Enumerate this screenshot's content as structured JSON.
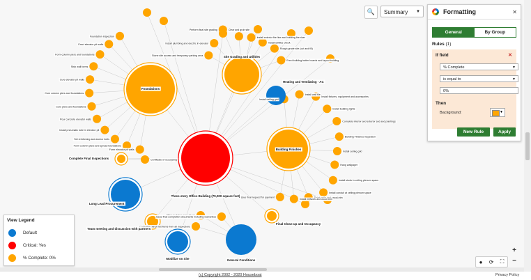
{
  "colors": {
    "default": "#0B79D0",
    "critical": "#FF0000",
    "complete": "#FFA500",
    "brand_green": "#2E7D32"
  },
  "toolbar": {
    "search_icon": "search-icon",
    "view_selected": "Summary"
  },
  "formatting": {
    "title": "Formatting",
    "close_icon": "close-icon",
    "tabs": [
      "General",
      "By Group"
    ],
    "active_tab": "General",
    "rules_label": "Rules",
    "rules_count": "(1)",
    "rule": {
      "if_label": "If field",
      "field": "% Complete",
      "operator": "is equal to",
      "value": "0%",
      "then_label": "Then",
      "background_label": "Background:",
      "background_color": "#FFA500"
    },
    "new_rule_label": "New Rule",
    "apply_label": "Apply"
  },
  "legend": {
    "title": "View Legend",
    "items": [
      {
        "label": "Default",
        "color": "#0B79D0"
      },
      {
        "label": "Critical: Yes",
        "color": "#FF0000"
      },
      {
        "label": "% Complete: 0%",
        "color": "#FFA500"
      }
    ]
  },
  "graph": {
    "center": {
      "label": "Three-story Office Building (79,000 square feet)",
      "kind": "critical"
    },
    "hubs": [
      {
        "id": "foundations",
        "label": "Foundations",
        "kind": "complete"
      },
      {
        "id": "site",
        "label": "Site Grading and Utilities",
        "kind": "complete"
      },
      {
        "id": "finishes",
        "label": "Building Finishes",
        "kind": "complete"
      },
      {
        "id": "hvac",
        "label": "Heating and Ventilating - AC",
        "kind": "default"
      },
      {
        "id": "procurement",
        "label": "Long Lead Procurement",
        "kind": "default"
      },
      {
        "id": "mobilize",
        "label": "Mobilize on Site",
        "kind": "default"
      },
      {
        "id": "general",
        "label": "General Conditions",
        "kind": "default"
      },
      {
        "id": "cleanup",
        "label": "Final Clean-up and Occupancy",
        "kind": "complete"
      },
      {
        "id": "inspections",
        "label": "Complete Final Inspections",
        "kind": "complete"
      },
      {
        "id": "meeting",
        "label": "Team meeting and discussion with partners",
        "kind": "complete"
      }
    ],
    "leaves": {
      "foundations": [
        "Foundation inspection",
        "Erect elevator pit walls",
        "Form column piers and foundations",
        "Strip wall forms",
        "Cure elevator pit walls",
        "Cure column piers and foundations",
        "Cure piers and foundations",
        "Pour concrete elevator walls",
        "Install pneumatic tube in elevator pit",
        "Set reinforcing and anchor bolts",
        "Form column piers and spread foundations",
        "Form elevator pit walls"
      ],
      "site": [
        "Stone site access and temporary parking area",
        "Install plumbing and electric in elevator",
        "Perform final site grading",
        "Clear and grub site",
        "Install exterior fire line and building fire riser",
        "Install utilities check",
        "Rough grade site (cut and fill)",
        "Erect building batter boards and layout building"
      ],
      "finishes": [
        "Install ceiling grid",
        "Install wall tile",
        "Install fixtures, equipment and accessories",
        "Install building lights",
        "Complete interior and exterior sod and plantings",
        "Building Finishes inspection",
        "Install ceiling grid",
        "Hang wallpaper",
        "Install studs in ceiling plenum space",
        "Install conduit at ceiling plenum space",
        "Paint walls and wood-trim",
        "Install millwork and wood trim",
        "Issue final request for payment"
      ],
      "general": [
        "Office building inspections",
        "Complete punch list items from all inspections",
        "Issue final completion documents including warranties"
      ],
      "inspections": [
        "Certificate of occupancy"
      ]
    }
  },
  "footer": {
    "copyright": "(c) Copyright 2002 - 2020 Houseboat",
    "privacy": "Privacy Policy"
  }
}
